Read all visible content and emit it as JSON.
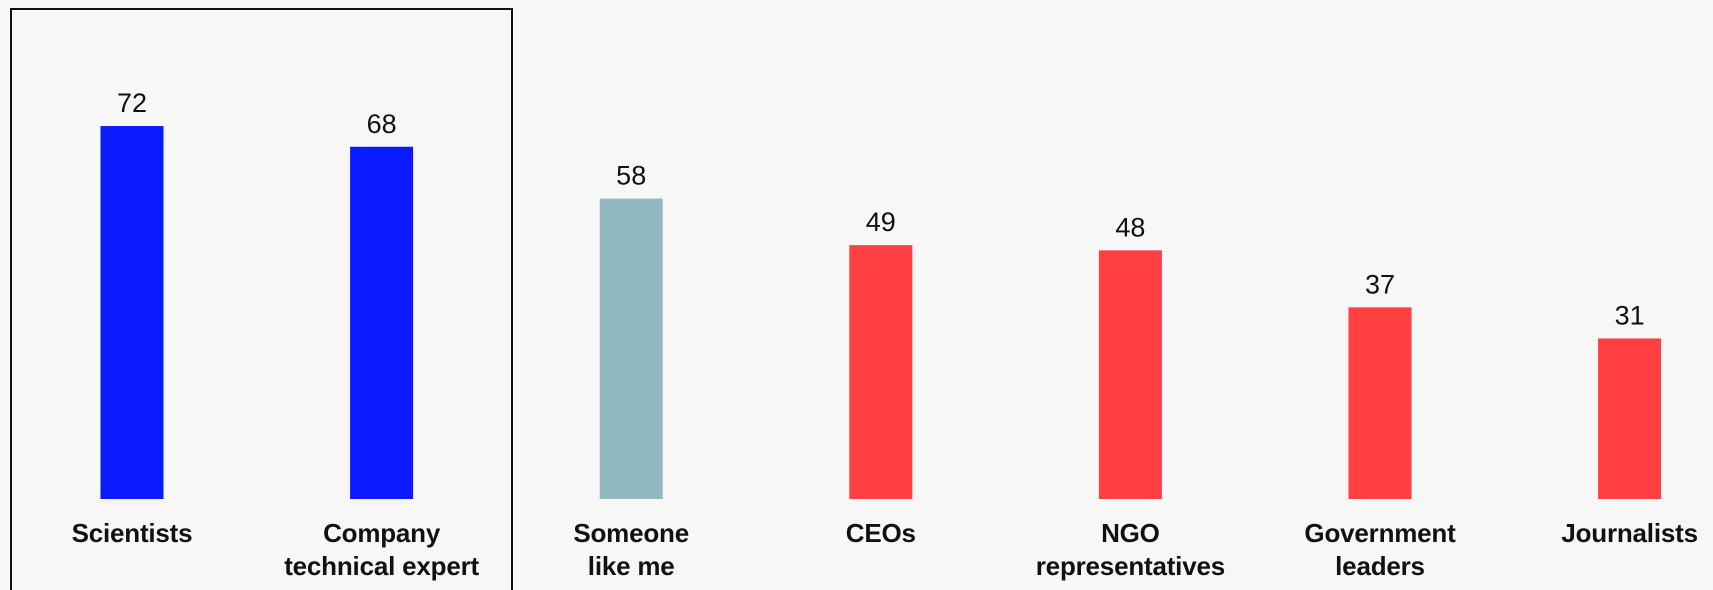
{
  "chart_data": {
    "type": "bar",
    "categories": [
      "Scientists",
      "Company\ntechnical expert",
      "Someone\nlike me",
      "CEOs",
      "NGO\nrepresentatives",
      "Government\nleaders",
      "Journalists"
    ],
    "values": [
      72,
      68,
      58,
      49,
      48,
      37,
      31
    ],
    "colors": [
      "#0a1cff",
      "#0a1cff",
      "#93b9c0",
      "#ff3f42",
      "#ff3f42",
      "#ff3f42",
      "#ff3f42"
    ]
  }
}
